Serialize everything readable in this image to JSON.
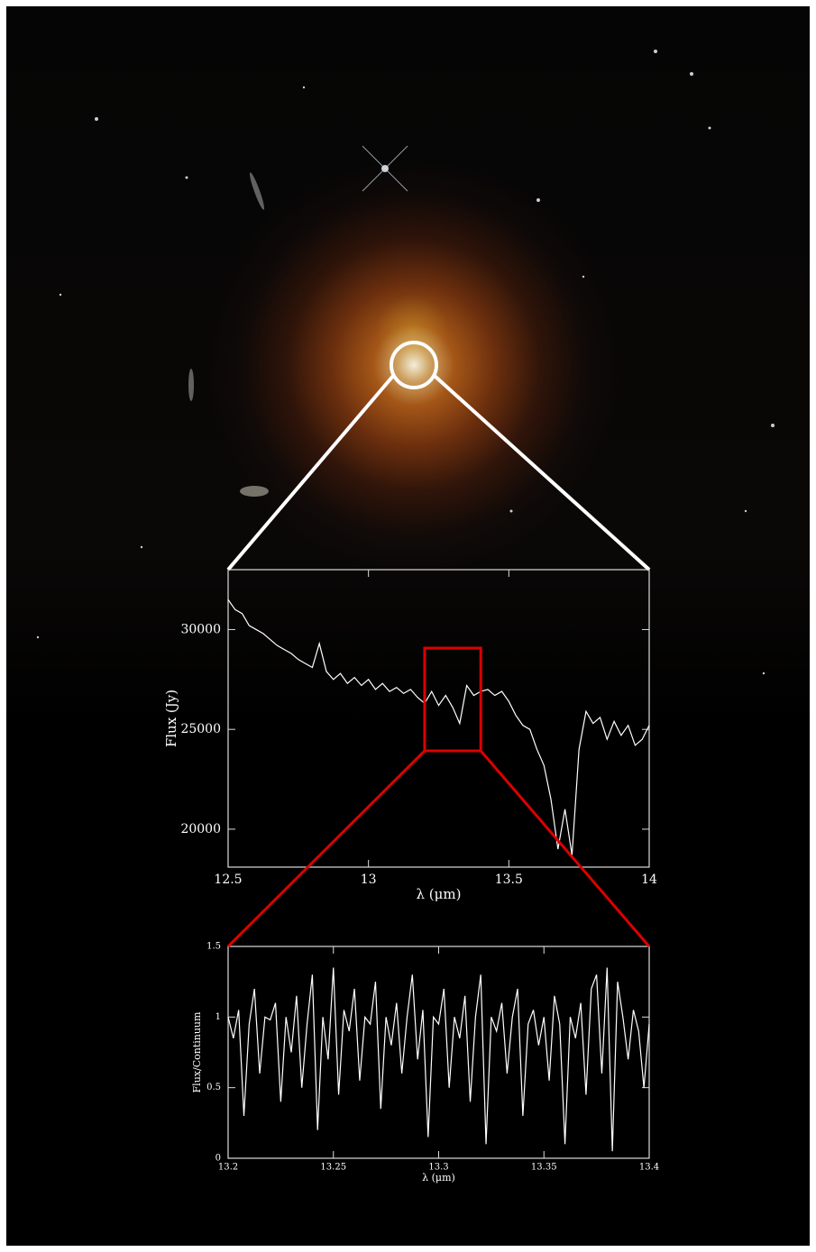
{
  "chart_data": [
    {
      "type": "line",
      "xlabel": "λ (μm)",
      "ylabel": "Flux (Jy)",
      "color": "#ffffff",
      "x": [
        12.5,
        12.525,
        12.55,
        12.575,
        12.6,
        12.625,
        12.65,
        12.675,
        12.7,
        12.725,
        12.75,
        12.775,
        12.8,
        12.825,
        12.85,
        12.875,
        12.9,
        12.925,
        12.95,
        12.975,
        13.0,
        13.025,
        13.05,
        13.075,
        13.1,
        13.125,
        13.15,
        13.175,
        13.2,
        13.225,
        13.25,
        13.275,
        13.3,
        13.325,
        13.35,
        13.375,
        13.4,
        13.425,
        13.45,
        13.475,
        13.5,
        13.525,
        13.55,
        13.575,
        13.6,
        13.625,
        13.65,
        13.675,
        13.7,
        13.725,
        13.75,
        13.775,
        13.8,
        13.825,
        13.85,
        13.875,
        13.9,
        13.925,
        13.95,
        13.975,
        14.0
      ],
      "values": [
        31500,
        31000,
        30800,
        30200,
        30000,
        29800,
        29500,
        29200,
        29000,
        28800,
        28500,
        28300,
        28100,
        29300,
        27900,
        27500,
        27800,
        27300,
        27600,
        27200,
        27500,
        27000,
        27300,
        26900,
        27100,
        26800,
        27000,
        26600,
        26300,
        26900,
        26200,
        26700,
        26100,
        25300,
        27200,
        26700,
        26900,
        27000,
        26700,
        26900,
        26400,
        25700,
        25200,
        25000,
        24000,
        23200,
        21500,
        19000,
        21000,
        18700,
        24000,
        25900,
        25300,
        25600,
        24500,
        25400,
        24700,
        25200,
        24200,
        24500,
        25200
      ],
      "xlim": [
        12.5,
        14
      ],
      "ylim": [
        18100,
        33000
      ],
      "xticks": [
        12.5,
        13,
        13.5,
        14
      ],
      "yticks": [
        20000,
        25000,
        30000
      ]
    },
    {
      "type": "line",
      "xlabel": "λ (μm)",
      "ylabel": "Flux/Continuum",
      "color": "#ffffff",
      "x": [
        13.2,
        13.2025,
        13.205,
        13.2075,
        13.21,
        13.2125,
        13.215,
        13.2175,
        13.22,
        13.2225,
        13.225,
        13.2275,
        13.23,
        13.2325,
        13.235,
        13.2375,
        13.24,
        13.2425,
        13.245,
        13.2475,
        13.25,
        13.2525,
        13.255,
        13.2575,
        13.26,
        13.2625,
        13.265,
        13.2675,
        13.27,
        13.2725,
        13.275,
        13.2775,
        13.28,
        13.2825,
        13.285,
        13.2875,
        13.29,
        13.2925,
        13.295,
        13.2975,
        13.3,
        13.3025,
        13.305,
        13.3075,
        13.31,
        13.3125,
        13.315,
        13.3175,
        13.32,
        13.3225,
        13.325,
        13.3275,
        13.33,
        13.3325,
        13.335,
        13.3375,
        13.34,
        13.3425,
        13.345,
        13.3475,
        13.35,
        13.3525,
        13.355,
        13.3575,
        13.36,
        13.3625,
        13.365,
        13.3675,
        13.37,
        13.3725,
        13.375,
        13.3775,
        13.38,
        13.3825,
        13.385,
        13.3875,
        13.39,
        13.3925,
        13.395,
        13.3975,
        13.4
      ],
      "values": [
        1.0,
        0.85,
        1.05,
        0.3,
        0.95,
        1.2,
        0.6,
        1.0,
        0.98,
        1.1,
        0.4,
        1.0,
        0.75,
        1.15,
        0.5,
        0.95,
        1.3,
        0.2,
        1.0,
        0.7,
        1.35,
        0.45,
        1.05,
        0.9,
        1.2,
        0.55,
        1.0,
        0.95,
        1.25,
        0.35,
        1.0,
        0.8,
        1.1,
        0.6,
        1.0,
        1.3,
        0.7,
        1.05,
        0.15,
        1.0,
        0.95,
        1.2,
        0.5,
        1.0,
        0.85,
        1.15,
        0.4,
        1.0,
        1.3,
        0.1,
        1.0,
        0.9,
        1.1,
        0.6,
        1.0,
        1.2,
        0.3,
        0.95,
        1.05,
        0.8,
        1.0,
        0.55,
        1.15,
        0.95,
        0.1,
        1.0,
        0.85,
        1.1,
        0.45,
        1.2,
        1.3,
        0.6,
        1.35,
        0.05,
        1.25,
        1.0,
        0.7,
        1.05,
        0.9,
        0.5,
        0.95
      ],
      "xlim": [
        13.2,
        13.4
      ],
      "ylim": [
        0,
        1.5
      ],
      "xticks": [
        13.2,
        13.25,
        13.3,
        13.35,
        13.4
      ],
      "yticks": [
        0,
        0.5,
        1,
        1.5
      ]
    }
  ]
}
